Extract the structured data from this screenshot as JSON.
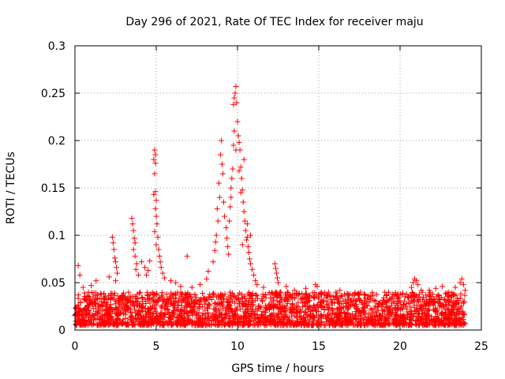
{
  "chart_data": {
    "type": "scatter",
    "title": "Day 296 of 2021, Rate Of TEC Index for receiver maju",
    "xlabel": "GPS time / hours",
    "ylabel": "ROTI / TECUs",
    "xlim": [
      0,
      25
    ],
    "ylim": [
      0,
      0.3
    ],
    "grid": true,
    "marker": "+",
    "color": "#ff0000",
    "x_ticks": [
      0,
      5,
      10,
      15,
      20,
      25
    ],
    "y_ticks": [
      0,
      0.05,
      0.1,
      0.15,
      0.2,
      0.25,
      0.3
    ],
    "x_tick_labels": [
      "0",
      "5",
      "10",
      "15",
      "20",
      "25"
    ],
    "y_tick_labels": [
      "0",
      "0.05",
      "0.1",
      "0.15",
      "0.2",
      "0.25",
      "0.3"
    ],
    "baseline": {
      "x_range": [
        0,
        24
      ],
      "typical_range": [
        0.005,
        0.04
      ],
      "description_values": "dense band of points between 0.005 and 0.04 TECU for all hours"
    },
    "series": [
      {
        "name": "ROTI",
        "points": [
          [
            0.2,
            0.068
          ],
          [
            0.3,
            0.058
          ],
          [
            0.5,
            0.045
          ],
          [
            1.0,
            0.047
          ],
          [
            1.3,
            0.052
          ],
          [
            2.1,
            0.056
          ],
          [
            2.3,
            0.098
          ],
          [
            2.35,
            0.092
          ],
          [
            2.4,
            0.085
          ],
          [
            2.45,
            0.076
          ],
          [
            2.5,
            0.072
          ],
          [
            2.55,
            0.066
          ],
          [
            2.6,
            0.06
          ],
          [
            2.5,
            0.052
          ],
          [
            3.5,
            0.118
          ],
          [
            3.55,
            0.112
          ],
          [
            3.6,
            0.105
          ],
          [
            3.65,
            0.097
          ],
          [
            3.7,
            0.092
          ],
          [
            3.6,
            0.085
          ],
          [
            3.7,
            0.078
          ],
          [
            3.8,
            0.07
          ],
          [
            3.75,
            0.064
          ],
          [
            3.9,
            0.058
          ],
          [
            4.1,
            0.072
          ],
          [
            4.3,
            0.066
          ],
          [
            4.5,
            0.063
          ],
          [
            4.6,
            0.073
          ],
          [
            4.4,
            0.058
          ],
          [
            4.9,
            0.19
          ],
          [
            4.95,
            0.185
          ],
          [
            4.85,
            0.18
          ],
          [
            4.95,
            0.176
          ],
          [
            4.9,
            0.165
          ],
          [
            4.95,
            0.146
          ],
          [
            4.85,
            0.143
          ],
          [
            5.0,
            0.137
          ],
          [
            4.95,
            0.128
          ],
          [
            5.0,
            0.12
          ],
          [
            5.05,
            0.112
          ],
          [
            4.9,
            0.104
          ],
          [
            5.1,
            0.098
          ],
          [
            5.0,
            0.09
          ],
          [
            5.15,
            0.085
          ],
          [
            5.2,
            0.078
          ],
          [
            5.25,
            0.072
          ],
          [
            5.3,
            0.066
          ],
          [
            5.4,
            0.06
          ],
          [
            5.5,
            0.055
          ],
          [
            5.9,
            0.052
          ],
          [
            6.2,
            0.05
          ],
          [
            6.5,
            0.046
          ],
          [
            6.9,
            0.078
          ],
          [
            7.2,
            0.045
          ],
          [
            7.7,
            0.048
          ],
          [
            8.1,
            0.054
          ],
          [
            8.2,
            0.062
          ],
          [
            8.5,
            0.072
          ],
          [
            8.6,
            0.084
          ],
          [
            8.65,
            0.093
          ],
          [
            8.7,
            0.1
          ],
          [
            8.8,
            0.115
          ],
          [
            8.75,
            0.128
          ],
          [
            8.9,
            0.14
          ],
          [
            8.85,
            0.155
          ],
          [
            8.95,
            0.185
          ],
          [
            9.0,
            0.2
          ],
          [
            9.05,
            0.175
          ],
          [
            9.1,
            0.165
          ],
          [
            9.15,
            0.135
          ],
          [
            9.2,
            0.12
          ],
          [
            9.3,
            0.108
          ],
          [
            9.35,
            0.097
          ],
          [
            9.4,
            0.088
          ],
          [
            9.45,
            0.08
          ],
          [
            9.5,
            0.115
          ],
          [
            9.55,
            0.13
          ],
          [
            9.6,
            0.15
          ],
          [
            9.65,
            0.16
          ],
          [
            9.7,
            0.17
          ],
          [
            9.75,
            0.195
          ],
          [
            9.8,
            0.21
          ],
          [
            9.75,
            0.238
          ],
          [
            9.8,
            0.245
          ],
          [
            9.85,
            0.25
          ],
          [
            9.9,
            0.257
          ],
          [
            9.95,
            0.24
          ],
          [
            10.0,
            0.22
          ],
          [
            10.05,
            0.205
          ],
          [
            10.1,
            0.198
          ],
          [
            10.15,
            0.19
          ],
          [
            10.2,
            0.172
          ],
          [
            10.25,
            0.16
          ],
          [
            10.3,
            0.148
          ],
          [
            10.35,
            0.135
          ],
          [
            10.4,
            0.125
          ],
          [
            10.45,
            0.115
          ],
          [
            10.5,
            0.105
          ],
          [
            10.55,
            0.095
          ],
          [
            10.6,
            0.098
          ],
          [
            10.65,
            0.088
          ],
          [
            10.7,
            0.082
          ],
          [
            10.75,
            0.075
          ],
          [
            10.8,
            0.07
          ],
          [
            10.9,
            0.064
          ],
          [
            11.0,
            0.058
          ],
          [
            11.1,
            0.052
          ],
          [
            10.4,
            0.18
          ],
          [
            10.2,
            0.145
          ],
          [
            9.9,
            0.19
          ],
          [
            9.6,
            0.14
          ],
          [
            10.1,
            0.168
          ],
          [
            10.3,
            0.09
          ],
          [
            10.6,
            0.112
          ],
          [
            10.8,
            0.1
          ],
          [
            11.2,
            0.048
          ],
          [
            11.6,
            0.045
          ],
          [
            12.3,
            0.07
          ],
          [
            12.35,
            0.065
          ],
          [
            12.4,
            0.06
          ],
          [
            12.45,
            0.055
          ],
          [
            12.5,
            0.05
          ],
          [
            13.0,
            0.046
          ],
          [
            13.5,
            0.042
          ],
          [
            14.2,
            0.044
          ],
          [
            14.8,
            0.048
          ],
          [
            14.9,
            0.046
          ],
          [
            15.6,
            0.04
          ],
          [
            16.3,
            0.042
          ],
          [
            16.9,
            0.038
          ],
          [
            17.4,
            0.038
          ],
          [
            18.2,
            0.036
          ],
          [
            19.0,
            0.034
          ],
          [
            19.8,
            0.036
          ],
          [
            20.4,
            0.038
          ],
          [
            20.7,
            0.045
          ],
          [
            20.8,
            0.05
          ],
          [
            20.9,
            0.054
          ],
          [
            21.0,
            0.052
          ],
          [
            21.1,
            0.048
          ],
          [
            21.3,
            0.042
          ],
          [
            21.8,
            0.042
          ],
          [
            22.2,
            0.044
          ],
          [
            22.6,
            0.046
          ],
          [
            23.0,
            0.04
          ],
          [
            23.4,
            0.045
          ],
          [
            23.7,
            0.05
          ],
          [
            23.8,
            0.054
          ],
          [
            23.9,
            0.048
          ],
          [
            24.0,
            0.042
          ]
        ]
      }
    ]
  }
}
